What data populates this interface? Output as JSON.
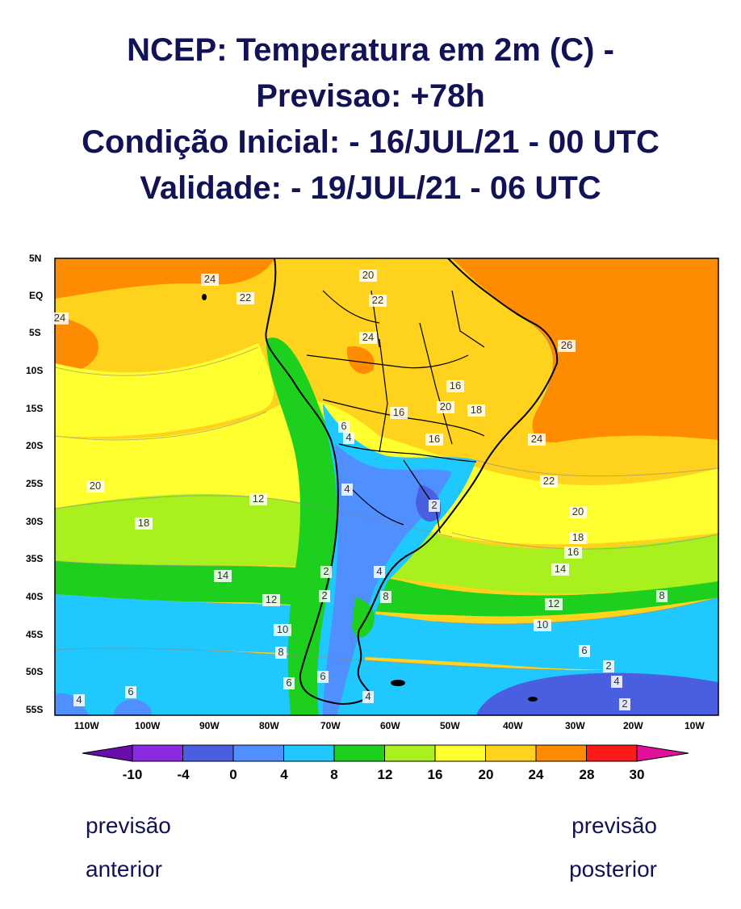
{
  "title": {
    "line1": "NCEP: Temperatura em 2m (C) -",
    "line2": "Previsao: +78h",
    "line3": "Condição Inicial: - 16/JUL/21 - 00 UTC",
    "line4": "Validade: - 19/JUL/21 - 06 UTC"
  },
  "map": {
    "lat_labels": [
      "5N",
      "EQ",
      "5S",
      "10S",
      "15S",
      "20S",
      "25S",
      "30S",
      "35S",
      "40S",
      "45S",
      "50S",
      "55S"
    ],
    "lon_labels": [
      "110W",
      "100W",
      "90W",
      "80W",
      "70W",
      "60W",
      "50W",
      "40W",
      "30W",
      "20W",
      "10W"
    ],
    "contour_labels": [
      "24",
      "22",
      "24",
      "20",
      "22",
      "24",
      "26",
      "16",
      "20",
      "18",
      "24",
      "6",
      "4",
      "16",
      "4",
      "22",
      "20",
      "12",
      "16",
      "18",
      "2",
      "20",
      "18",
      "16",
      "14",
      "14",
      "12",
      "4",
      "2",
      "8",
      "12",
      "10",
      "10",
      "8",
      "6",
      "8",
      "6",
      "4",
      "2",
      "4",
      "6",
      "4",
      "2",
      "6",
      "2"
    ]
  },
  "colorbar": {
    "labels": [
      "-10",
      "-4",
      "0",
      "4",
      "8",
      "12",
      "16",
      "20",
      "24",
      "28",
      "30"
    ],
    "colors": [
      "#6a0dad",
      "#8a2be2",
      "#4a5fe0",
      "#4f8fff",
      "#1fc8ff",
      "#1ed01e",
      "#a8f01e",
      "#ffff30",
      "#ffd21e",
      "#ff8c00",
      "#ff1a1a",
      "#e0109a"
    ]
  },
  "nav": {
    "prev_line1": "previsão",
    "prev_line2": "anterior",
    "next_line1": "previsão",
    "next_line2": "posterior"
  }
}
